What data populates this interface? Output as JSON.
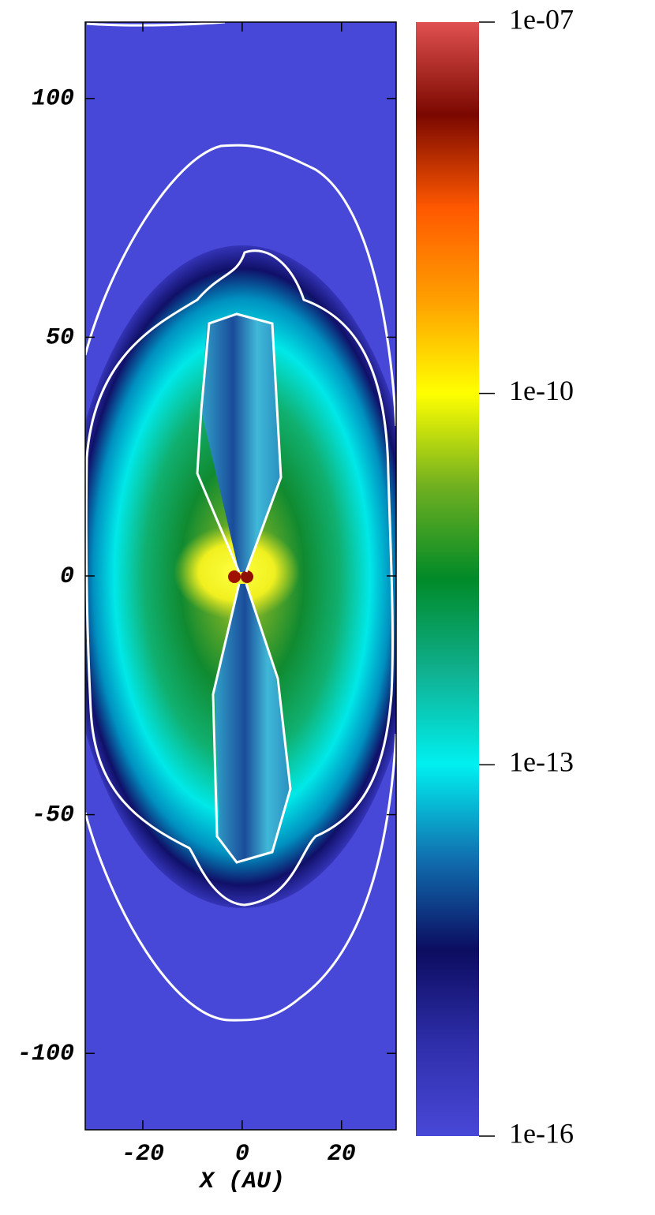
{
  "chart_data": {
    "type": "heatmap",
    "xlabel": "X (AU)",
    "xlim": [
      -31.6,
      31
    ],
    "xticks": [
      -20,
      0,
      20
    ],
    "ylim": [
      -116,
      116
    ],
    "yticks": [
      -100,
      -50,
      0,
      50,
      100
    ],
    "colorbar": {
      "scale": "log",
      "lim": [
        1e-16,
        1e-07
      ],
      "ticks": [
        {
          "value": 1e-07,
          "label": "1e-07"
        },
        {
          "value": 1e-10,
          "label": "1e-10"
        },
        {
          "value": 1e-13,
          "label": "1e-13"
        },
        {
          "value": 1e-16,
          "label": "1e-16"
        }
      ],
      "colors": [
        "#4848d8",
        "#2e2eaa",
        "#0c0c60",
        "#1070b0",
        "#00f0f0",
        "#10b090",
        "#008a28",
        "#70b020",
        "#ffff00",
        "#ffa000",
        "#ff5800",
        "#7a0800",
        "#e05050"
      ]
    }
  }
}
